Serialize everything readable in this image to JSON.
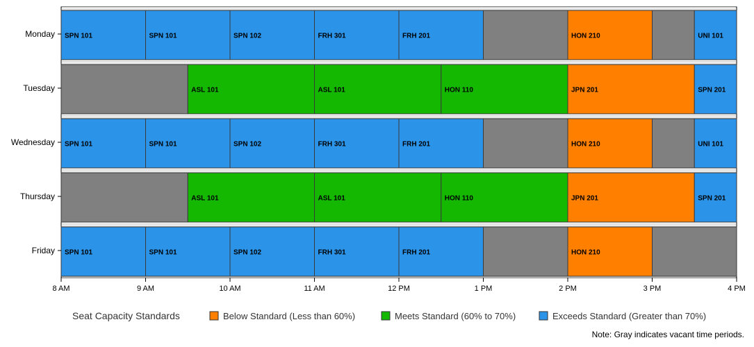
{
  "chart_data": {
    "type": "bar",
    "orientation": "horizontal",
    "x_unit": "hour of day (24h)",
    "xlim": [
      8,
      16
    ],
    "x_ticks": [
      {
        "value": 8,
        "label": "8 AM"
      },
      {
        "value": 9,
        "label": "9 AM"
      },
      {
        "value": 10,
        "label": "10 AM"
      },
      {
        "value": 11,
        "label": "11 AM"
      },
      {
        "value": 12,
        "label": "12 PM"
      },
      {
        "value": 13,
        "label": "1 PM"
      },
      {
        "value": 14,
        "label": "2 PM"
      },
      {
        "value": 15,
        "label": "3 PM"
      },
      {
        "value": 16,
        "label": "4 PM"
      }
    ],
    "categories": [
      "Monday",
      "Tuesday",
      "Wednesday",
      "Thursday",
      "Friday"
    ],
    "legend": {
      "title": "Seat Capacity Standards",
      "placement": "bottom",
      "entries": [
        {
          "key": "below",
          "label": "Below Standard (Less than 60%)"
        },
        {
          "key": "meets",
          "label": "Meets Standard (60% to 70%)"
        },
        {
          "key": "exceeds",
          "label": "Exceeds Standard (Greater than 70%)"
        }
      ]
    },
    "colors": {
      "below": "#ff7f00",
      "meets": "#15b800",
      "exceeds": "#2b93e8",
      "vacant": "#808080"
    },
    "note": "Note: Gray indicates vacant time periods.",
    "days": [
      {
        "day": "Monday",
        "blocks": [
          {
            "start": 8,
            "end": 9,
            "label": "SPN 101",
            "status": "exceeds"
          },
          {
            "start": 9,
            "end": 10,
            "label": "SPN 101",
            "status": "exceeds"
          },
          {
            "start": 10,
            "end": 11,
            "label": "SPN 102",
            "status": "exceeds"
          },
          {
            "start": 11,
            "end": 12,
            "label": "FRH 301",
            "status": "exceeds"
          },
          {
            "start": 12,
            "end": 13,
            "label": "FRH 201",
            "status": "exceeds"
          },
          {
            "start": 13,
            "end": 14,
            "label": "",
            "status": "vacant"
          },
          {
            "start": 14,
            "end": 15,
            "label": "HON 210",
            "status": "below"
          },
          {
            "start": 15,
            "end": 15.5,
            "label": "",
            "status": "vacant"
          },
          {
            "start": 15.5,
            "end": 16,
            "label": "UNI 101",
            "status": "exceeds"
          }
        ]
      },
      {
        "day": "Tuesday",
        "blocks": [
          {
            "start": 8,
            "end": 9.5,
            "label": "",
            "status": "vacant"
          },
          {
            "start": 9.5,
            "end": 11,
            "label": "ASL 101",
            "status": "meets"
          },
          {
            "start": 11,
            "end": 12.5,
            "label": "ASL 101",
            "status": "meets"
          },
          {
            "start": 12.5,
            "end": 14,
            "label": "HON 110",
            "status": "meets"
          },
          {
            "start": 14,
            "end": 15.5,
            "label": "JPN 201",
            "status": "below"
          },
          {
            "start": 15.5,
            "end": 16,
            "label": "SPN 201",
            "status": "exceeds"
          }
        ]
      },
      {
        "day": "Wednesday",
        "blocks": [
          {
            "start": 8,
            "end": 9,
            "label": "SPN 101",
            "status": "exceeds"
          },
          {
            "start": 9,
            "end": 10,
            "label": "SPN 101",
            "status": "exceeds"
          },
          {
            "start": 10,
            "end": 11,
            "label": "SPN 102",
            "status": "exceeds"
          },
          {
            "start": 11,
            "end": 12,
            "label": "FRH 301",
            "status": "exceeds"
          },
          {
            "start": 12,
            "end": 13,
            "label": "FRH 201",
            "status": "exceeds"
          },
          {
            "start": 13,
            "end": 14,
            "label": "",
            "status": "vacant"
          },
          {
            "start": 14,
            "end": 15,
            "label": "HON 210",
            "status": "below"
          },
          {
            "start": 15,
            "end": 15.5,
            "label": "",
            "status": "vacant"
          },
          {
            "start": 15.5,
            "end": 16,
            "label": "UNI 101",
            "status": "exceeds"
          }
        ]
      },
      {
        "day": "Thursday",
        "blocks": [
          {
            "start": 8,
            "end": 9.5,
            "label": "",
            "status": "vacant"
          },
          {
            "start": 9.5,
            "end": 11,
            "label": "ASL 101",
            "status": "meets"
          },
          {
            "start": 11,
            "end": 12.5,
            "label": "ASL 101",
            "status": "meets"
          },
          {
            "start": 12.5,
            "end": 14,
            "label": "HON 110",
            "status": "meets"
          },
          {
            "start": 14,
            "end": 15.5,
            "label": "JPN 201",
            "status": "below"
          },
          {
            "start": 15.5,
            "end": 16,
            "label": "SPN 201",
            "status": "exceeds"
          }
        ]
      },
      {
        "day": "Friday",
        "blocks": [
          {
            "start": 8,
            "end": 9,
            "label": "SPN 101",
            "status": "exceeds"
          },
          {
            "start": 9,
            "end": 10,
            "label": "SPN 101",
            "status": "exceeds"
          },
          {
            "start": 10,
            "end": 11,
            "label": "SPN 102",
            "status": "exceeds"
          },
          {
            "start": 11,
            "end": 12,
            "label": "FRH 301",
            "status": "exceeds"
          },
          {
            "start": 12,
            "end": 13,
            "label": "FRH 201",
            "status": "exceeds"
          },
          {
            "start": 13,
            "end": 14,
            "label": "",
            "status": "vacant"
          },
          {
            "start": 14,
            "end": 15,
            "label": "HON 210",
            "status": "below"
          },
          {
            "start": 15,
            "end": 16,
            "label": "",
            "status": "vacant"
          }
        ]
      }
    ]
  }
}
